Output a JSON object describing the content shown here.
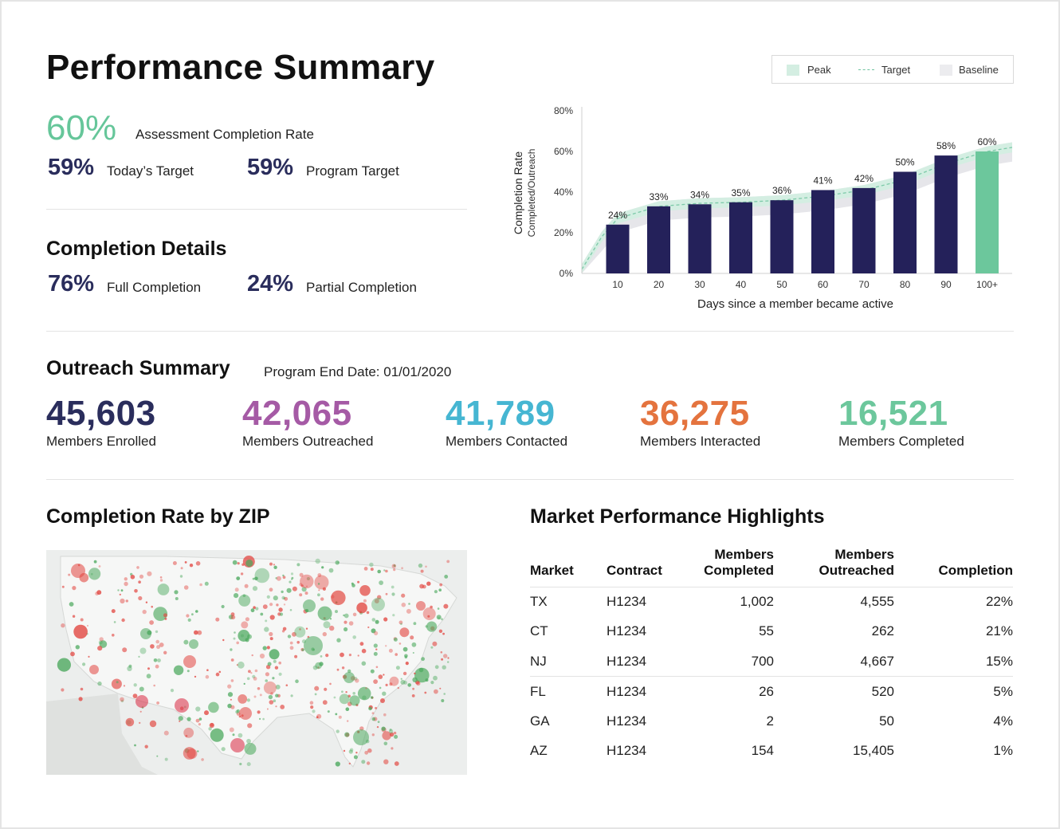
{
  "header": {
    "title": "Performance Summary"
  },
  "assessment": {
    "rate": "60%",
    "rate_label": "Assessment Completion Rate",
    "todays_target": "59%",
    "todays_target_label": "Today’s Target",
    "program_target": "59%",
    "program_target_label": "Program Target"
  },
  "completion_details": {
    "title": "Completion Details",
    "full": "76%",
    "full_label": "Full Completion",
    "partial": "24%",
    "partial_label": "Partial Completion"
  },
  "legend": {
    "peak": "Peak",
    "target": "Target",
    "baseline": "Baseline"
  },
  "chart_data": {
    "type": "bar",
    "categories": [
      "10",
      "20",
      "30",
      "40",
      "50",
      "60",
      "70",
      "80",
      "90",
      "100+"
    ],
    "values": [
      24,
      33,
      34,
      35,
      36,
      41,
      42,
      50,
      58,
      60
    ],
    "value_labels": [
      "24%",
      "33%",
      "34%",
      "35%",
      "36%",
      "41%",
      "42%",
      "50%",
      "58%",
      "60%"
    ],
    "highlight_index": 9,
    "ylim": [
      0,
      80
    ],
    "y_ticks": [
      "0%",
      "20%",
      "40%",
      "60%",
      "80%"
    ],
    "ylabel": "Completion Rate",
    "ylabel_sub": "Completed/Outreach",
    "xlabel": "Days since a member became active",
    "legend_position": "top-right",
    "colors": {
      "bar": "#24215a",
      "highlight": "#6cc79c",
      "peak_band": "#d4eee2",
      "target": "#7ccaa8",
      "baseline": "#e6e6ea"
    }
  },
  "outreach": {
    "title": "Outreach Summary",
    "end_date": "Program End Date: 01/01/2020",
    "stats": [
      {
        "value": "45,603",
        "label": "Members Enrolled",
        "color": "#2a2d5c"
      },
      {
        "value": "42,065",
        "label": "Members Outreached",
        "color": "#a55aa5"
      },
      {
        "value": "41,789",
        "label": "Members Contacted",
        "color": "#46b6d2"
      },
      {
        "value": "36,275",
        "label": "Members Interacted",
        "color": "#e4733e"
      },
      {
        "value": "16,521",
        "label": "Members Completed",
        "color": "#6cc79c"
      }
    ]
  },
  "zip_map": {
    "title": "Completion Rate by ZIP"
  },
  "market": {
    "title": "Market Performance Highlights",
    "columns": {
      "market": "Market",
      "contract": "Contract",
      "completed_1": "Members",
      "completed_2": "Completed",
      "outreached_1": "Members",
      "outreached_2": "Outreached",
      "completion": "Completion"
    },
    "rows": [
      {
        "market": "TX",
        "contract": "H1234",
        "completed": "1,002",
        "outreached": "4,555",
        "completion": "22%"
      },
      {
        "market": "CT",
        "contract": "H1234",
        "completed": "55",
        "outreached": "262",
        "completion": "21%"
      },
      {
        "market": "NJ",
        "contract": "H1234",
        "completed": "700",
        "outreached": "4,667",
        "completion": "15%"
      },
      {
        "market": "FL",
        "contract": "H1234",
        "completed": "26",
        "outreached": "520",
        "completion": "5%"
      },
      {
        "market": "GA",
        "contract": "H1234",
        "completed": "2",
        "outreached": "50",
        "completion": "4%"
      },
      {
        "market": "AZ",
        "contract": "H1234",
        "completed": "154",
        "outreached": "15,405",
        "completion": "1%"
      }
    ]
  }
}
